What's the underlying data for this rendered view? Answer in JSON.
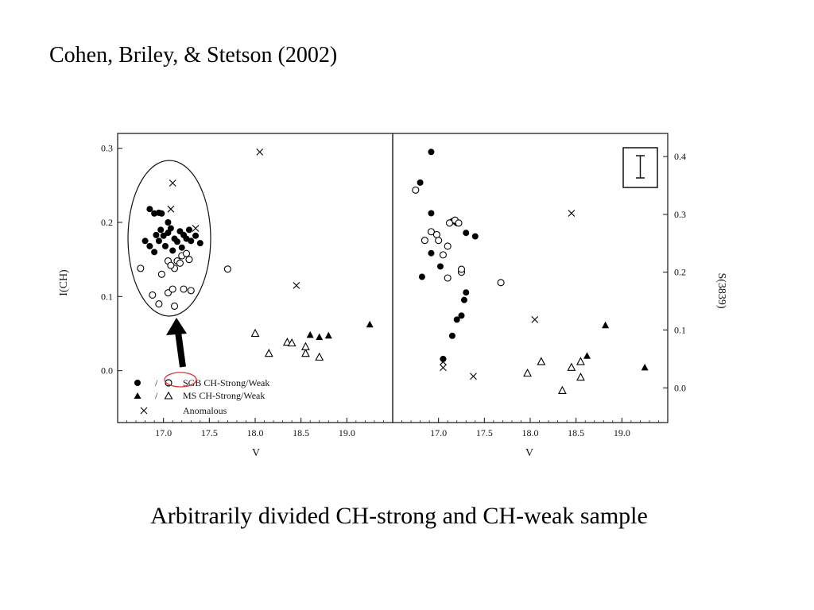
{
  "slide": {
    "title": "Cohen, Briley, & Stetson (2002)",
    "caption": "Arbitrarily divided CH-strong and CH-weak sample"
  },
  "chart_data": [
    {
      "type": "scatter",
      "panel": "left",
      "ylabel": "I(CH)",
      "xlabel": "V",
      "xlim": [
        16.5,
        19.5
      ],
      "ylim": [
        -0.07,
        0.32
      ],
      "x_ticks": [
        "17.0",
        "17.5",
        "18.0",
        "18.5",
        "19.0"
      ],
      "y_ticks": [
        "0.0",
        "0.1",
        "0.2",
        "0.3"
      ],
      "legend_position": "bottom-left",
      "legend": [
        {
          "label": "SGB CH-Strong/Weak",
          "marker": "circle-filled/circle-open"
        },
        {
          "label": "MS CH-Strong/Weak",
          "marker": "triangle-filled/triangle-open"
        },
        {
          "label": "Anomalous",
          "marker": "x"
        }
      ],
      "series": [
        {
          "name": "SGB CH-Strong",
          "marker": "circle-filled",
          "points": [
            [
              16.85,
              0.218
            ],
            [
              16.9,
              0.212
            ],
            [
              16.95,
              0.213
            ],
            [
              16.98,
              0.212
            ],
            [
              17.05,
              0.2
            ],
            [
              17.08,
              0.192
            ],
            [
              16.97,
              0.19
            ],
            [
              16.92,
              0.183
            ],
            [
              16.8,
              0.175
            ],
            [
              16.85,
              0.168
            ],
            [
              16.95,
              0.175
            ],
            [
              17.0,
              0.182
            ],
            [
              17.05,
              0.186
            ],
            [
              17.12,
              0.178
            ],
            [
              17.18,
              0.188
            ],
            [
              17.22,
              0.183
            ],
            [
              17.28,
              0.19
            ],
            [
              17.3,
              0.175
            ],
            [
              17.35,
              0.182
            ],
            [
              17.4,
              0.172
            ],
            [
              17.02,
              0.168
            ],
            [
              17.1,
              0.162
            ],
            [
              17.2,
              0.166
            ],
            [
              17.25,
              0.178
            ],
            [
              16.9,
              0.16
            ],
            [
              17.15,
              0.174
            ]
          ]
        },
        {
          "name": "SGB CH-Weak",
          "marker": "circle-open",
          "points": [
            [
              16.75,
              0.138
            ],
            [
              16.88,
              0.102
            ],
            [
              16.95,
              0.09
            ],
            [
              16.98,
              0.13
            ],
            [
              17.05,
              0.105
            ],
            [
              17.1,
              0.11
            ],
            [
              17.12,
              0.138
            ],
            [
              17.15,
              0.148
            ],
            [
              17.05,
              0.148
            ],
            [
              17.12,
              0.087
            ],
            [
              17.2,
              0.155
            ],
            [
              17.25,
              0.158
            ],
            [
              17.28,
              0.15
            ],
            [
              17.22,
              0.11
            ],
            [
              17.3,
              0.108
            ],
            [
              17.08,
              0.142
            ],
            [
              17.18,
              0.145
            ],
            [
              17.7,
              0.137
            ]
          ]
        },
        {
          "name": "MS CH-Strong",
          "marker": "triangle-filled",
          "points": [
            [
              18.6,
              0.048
            ],
            [
              18.7,
              0.045
            ],
            [
              18.8,
              0.047
            ],
            [
              19.25,
              0.062
            ]
          ]
        },
        {
          "name": "MS CH-Weak",
          "marker": "triangle-open",
          "points": [
            [
              18.0,
              0.05
            ],
            [
              18.15,
              0.023
            ],
            [
              18.35,
              0.038
            ],
            [
              18.4,
              0.037
            ],
            [
              18.55,
              0.023
            ],
            [
              18.55,
              0.032
            ],
            [
              18.7,
              0.018
            ]
          ]
        },
        {
          "name": "Anomalous",
          "marker": "x",
          "points": [
            [
              17.1,
              0.253
            ],
            [
              17.08,
              0.218
            ],
            [
              17.35,
              0.192
            ],
            [
              18.05,
              0.295
            ],
            [
              18.45,
              0.115
            ]
          ]
        }
      ]
    },
    {
      "type": "scatter",
      "panel": "right",
      "ylabel": "S(3839)",
      "xlabel": "V",
      "xlim": [
        16.5,
        19.5
      ],
      "ylim": [
        -0.06,
        0.44
      ],
      "x_ticks": [
        "17.0",
        "17.5",
        "18.0",
        "18.5",
        "19.0"
      ],
      "y_ticks": [
        "0.0",
        "0.1",
        "0.2",
        "0.3",
        "0.4"
      ],
      "series": [
        {
          "name": "SGB CH-Strong",
          "marker": "circle-filled",
          "points": [
            [
              16.8,
              0.355
            ],
            [
              16.92,
              0.408
            ],
            [
              16.92,
              0.302
            ],
            [
              16.92,
              0.233
            ],
            [
              16.82,
              0.192
            ],
            [
              17.02,
              0.21
            ],
            [
              17.05,
              0.05
            ],
            [
              17.15,
              0.288
            ],
            [
              17.2,
              0.285
            ],
            [
              17.3,
              0.268
            ],
            [
              17.4,
              0.262
            ],
            [
              17.15,
              0.09
            ],
            [
              17.2,
              0.118
            ],
            [
              17.25,
              0.125
            ],
            [
              17.28,
              0.152
            ],
            [
              17.3,
              0.165
            ]
          ]
        },
        {
          "name": "SGB CH-Weak",
          "marker": "circle-open",
          "points": [
            [
              16.75,
              0.342
            ],
            [
              16.85,
              0.255
            ],
            [
              16.92,
              0.27
            ],
            [
              16.98,
              0.265
            ],
            [
              17.0,
              0.255
            ],
            [
              17.05,
              0.23
            ],
            [
              17.1,
              0.245
            ],
            [
              17.12,
              0.285
            ],
            [
              17.18,
              0.29
            ],
            [
              17.22,
              0.285
            ],
            [
              17.25,
              0.2
            ],
            [
              17.25,
              0.205
            ],
            [
              17.1,
              0.19
            ],
            [
              17.68,
              0.182
            ]
          ]
        },
        {
          "name": "MS CH-Strong",
          "marker": "triangle-filled",
          "points": [
            [
              18.62,
              0.055
            ],
            [
              18.82,
              0.108
            ],
            [
              19.25,
              0.035
            ]
          ]
        },
        {
          "name": "MS CH-Weak",
          "marker": "triangle-open",
          "points": [
            [
              17.97,
              0.025
            ],
            [
              18.12,
              0.045
            ],
            [
              18.35,
              -0.005
            ],
            [
              18.45,
              0.035
            ],
            [
              18.55,
              0.045
            ],
            [
              18.55,
              0.018
            ]
          ]
        },
        {
          "name": "Anomalous",
          "marker": "x",
          "points": [
            [
              17.05,
              0.035
            ],
            [
              17.05,
              0.045
            ],
            [
              17.38,
              0.02
            ],
            [
              18.05,
              0.118
            ],
            [
              18.45,
              0.302
            ]
          ]
        }
      ]
    }
  ]
}
